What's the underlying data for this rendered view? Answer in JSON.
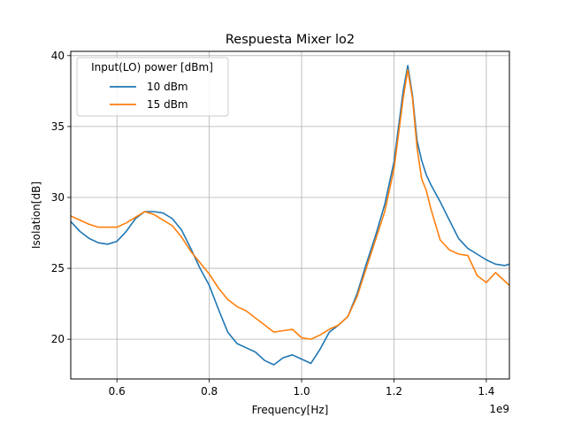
{
  "chart_data": {
    "type": "line",
    "title": "Respuesta Mixer lo2",
    "xlabel": "Frequency[Hz]",
    "ylabel": "Isolation[dB]",
    "x_offset_label": "1e9",
    "xlim": [
      0.5,
      1.45
    ],
    "ylim": [
      17.2,
      40.3
    ],
    "x_ticks": [
      0.6,
      0.8,
      1.0,
      1.2,
      1.4
    ],
    "x_tick_labels": [
      "0.6",
      "0.8",
      "1.0",
      "1.2",
      "1.4"
    ],
    "y_ticks": [
      20,
      25,
      30,
      35,
      40
    ],
    "y_tick_labels": [
      "20",
      "25",
      "30",
      "35",
      "40"
    ],
    "grid": true,
    "legend": {
      "title": "Input(LO) power [dBm]",
      "position": "top-left"
    },
    "series": [
      {
        "name": "10 dBm",
        "color": "#1f77b4",
        "x": [
          0.5,
          0.52,
          0.54,
          0.56,
          0.58,
          0.6,
          0.62,
          0.64,
          0.66,
          0.68,
          0.7,
          0.72,
          0.74,
          0.76,
          0.78,
          0.8,
          0.82,
          0.84,
          0.86,
          0.88,
          0.9,
          0.92,
          0.94,
          0.96,
          0.98,
          1.0,
          1.02,
          1.04,
          1.06,
          1.08,
          1.1,
          1.12,
          1.14,
          1.16,
          1.18,
          1.2,
          1.21,
          1.22,
          1.23,
          1.24,
          1.25,
          1.26,
          1.27,
          1.28,
          1.3,
          1.32,
          1.34,
          1.36,
          1.38,
          1.4,
          1.42,
          1.44,
          1.45
        ],
        "values": [
          28.3,
          27.6,
          27.1,
          26.8,
          26.7,
          26.9,
          27.6,
          28.5,
          29.0,
          29.0,
          28.9,
          28.5,
          27.7,
          26.4,
          25.0,
          23.8,
          22.1,
          20.5,
          19.7,
          19.4,
          19.1,
          18.5,
          18.2,
          18.7,
          18.9,
          18.6,
          18.3,
          19.3,
          20.5,
          21.0,
          21.6,
          23.2,
          25.3,
          27.3,
          29.5,
          32.5,
          35.0,
          37.5,
          39.3,
          37.2,
          34.0,
          32.6,
          31.6,
          30.9,
          29.7,
          28.4,
          27.1,
          26.4,
          26.0,
          25.6,
          25.3,
          25.2,
          25.3
        ]
      },
      {
        "name": "15 dBm",
        "color": "#ff7f0e",
        "x": [
          0.5,
          0.52,
          0.54,
          0.56,
          0.58,
          0.6,
          0.62,
          0.64,
          0.66,
          0.68,
          0.7,
          0.72,
          0.74,
          0.76,
          0.78,
          0.8,
          0.82,
          0.84,
          0.86,
          0.88,
          0.9,
          0.92,
          0.94,
          0.96,
          0.98,
          1.0,
          1.02,
          1.04,
          1.06,
          1.08,
          1.1,
          1.12,
          1.14,
          1.16,
          1.18,
          1.2,
          1.21,
          1.22,
          1.23,
          1.24,
          1.25,
          1.26,
          1.27,
          1.28,
          1.3,
          1.32,
          1.34,
          1.36,
          1.38,
          1.4,
          1.42,
          1.44,
          1.45
        ],
        "values": [
          28.7,
          28.4,
          28.1,
          27.9,
          27.9,
          27.9,
          28.2,
          28.6,
          29.0,
          28.8,
          28.4,
          28.0,
          27.2,
          26.2,
          25.4,
          24.6,
          23.6,
          22.8,
          22.3,
          22.0,
          21.5,
          21.0,
          20.5,
          20.6,
          20.7,
          20.1,
          20.0,
          20.3,
          20.7,
          21.0,
          21.6,
          23.0,
          25.0,
          27.0,
          29.0,
          32.0,
          34.5,
          37.0,
          39.0,
          37.0,
          33.5,
          31.3,
          30.5,
          29.2,
          27.0,
          26.3,
          26.0,
          25.9,
          24.5,
          24.0,
          24.7,
          24.1,
          23.8
        ]
      }
    ]
  }
}
